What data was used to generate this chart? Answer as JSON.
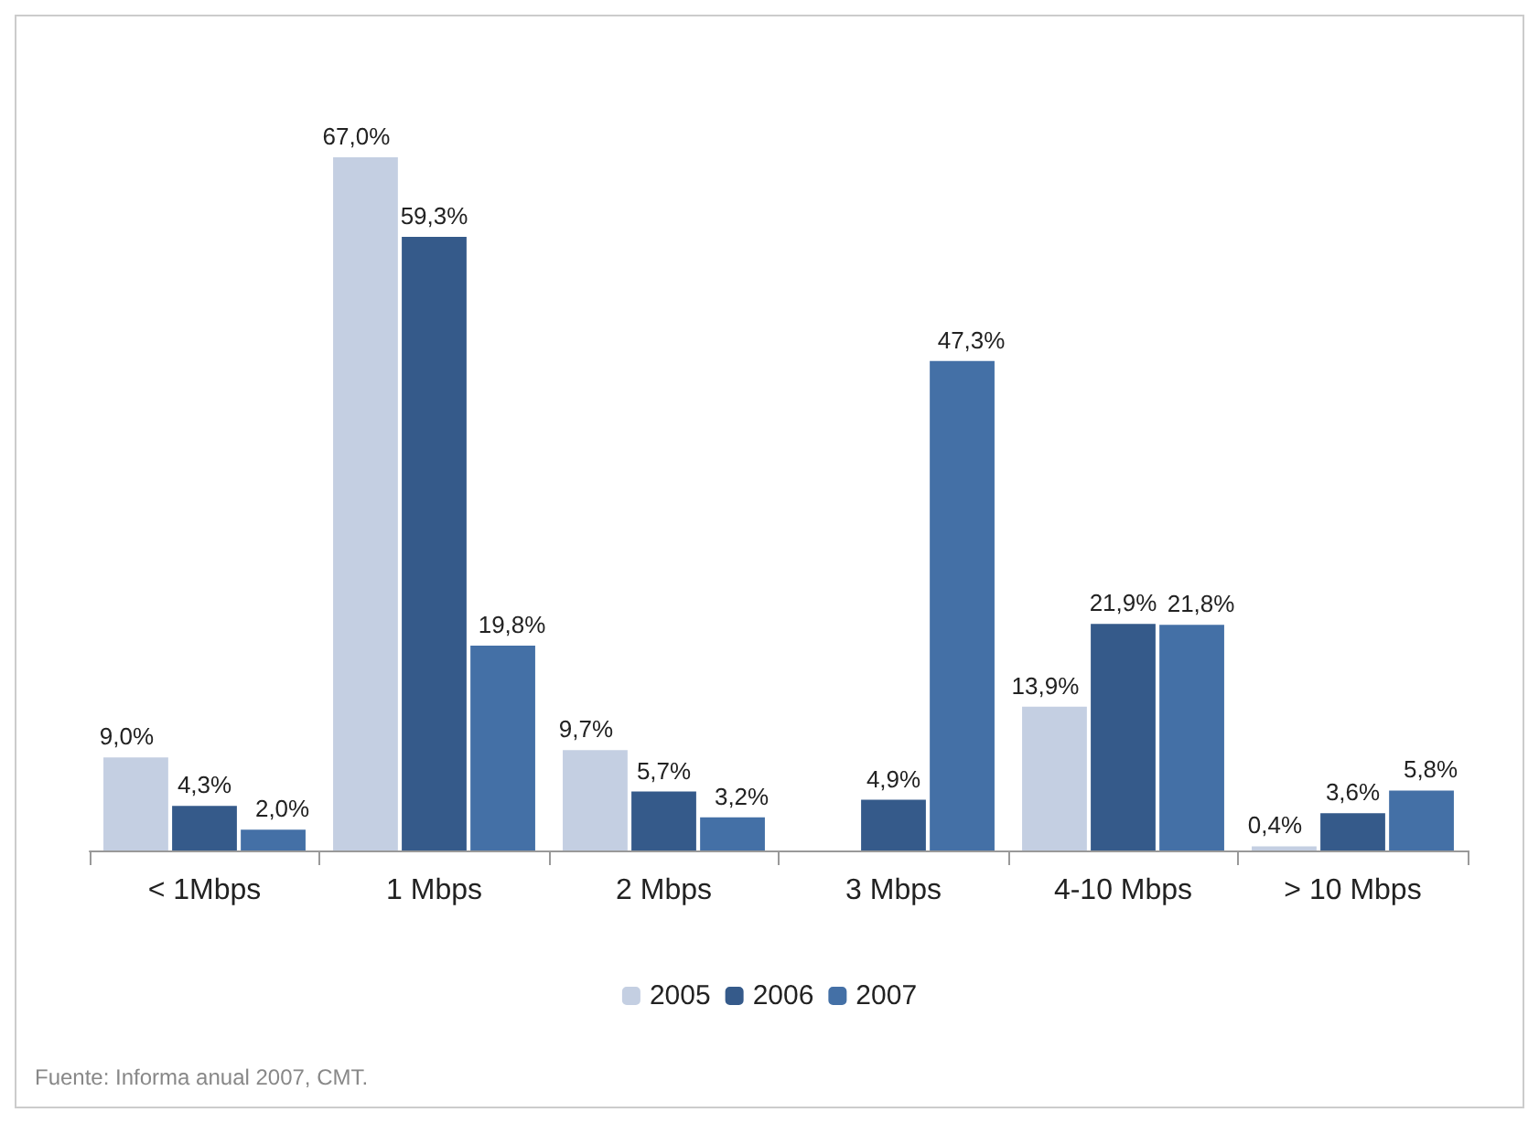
{
  "chart_data": {
    "type": "bar",
    "categories": [
      "< 1Mbps",
      "1 Mbps",
      "2 Mbps",
      "3 Mbps",
      "4-10 Mbps",
      "> 10 Mbps"
    ],
    "series": [
      {
        "name": "2005",
        "color": "#c4cfe2",
        "values": [
          9.0,
          67.0,
          9.7,
          null,
          13.9,
          0.4
        ],
        "value_labels": [
          "9,0%",
          "67,0%",
          "9,7%",
          null,
          "13,9%",
          "0,4%"
        ]
      },
      {
        "name": "2006",
        "color": "#355a8a",
        "values": [
          4.3,
          59.3,
          5.7,
          4.9,
          21.9,
          3.6
        ],
        "value_labels": [
          "4,3%",
          "59,3%",
          "5,7%",
          "4,9%",
          "21,9%",
          "3,6%"
        ]
      },
      {
        "name": "2007",
        "color": "#4470a6",
        "values": [
          2.0,
          19.8,
          3.2,
          47.3,
          21.8,
          5.8
        ],
        "value_labels": [
          "2,0%",
          "19,8%",
          "3,2%",
          "47,3%",
          "21,8%",
          "5,8%"
        ]
      }
    ],
    "legend": "bottom",
    "grid": false,
    "annotations": [
      "Fuente: Informa anual 2007, CMT."
    ]
  }
}
